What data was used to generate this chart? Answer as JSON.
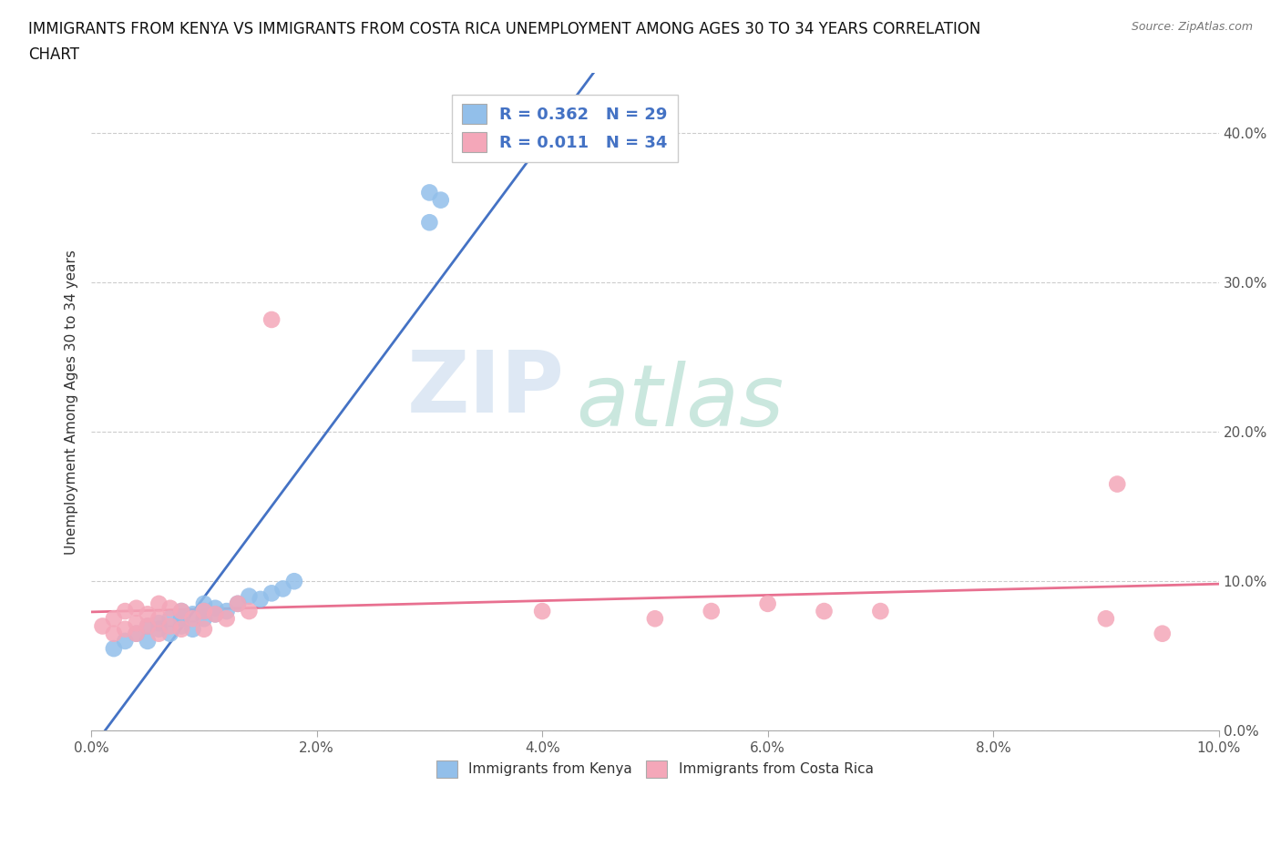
{
  "title_line1": "IMMIGRANTS FROM KENYA VS IMMIGRANTS FROM COSTA RICA UNEMPLOYMENT AMONG AGES 30 TO 34 YEARS CORRELATION",
  "title_line2": "CHART",
  "source_text": "Source: ZipAtlas.com",
  "ylabel": "Unemployment Among Ages 30 to 34 years",
  "xlim": [
    0.0,
    0.1
  ],
  "ylim": [
    0.0,
    0.44
  ],
  "xticks": [
    0.0,
    0.02,
    0.04,
    0.06,
    0.08,
    0.1
  ],
  "yticks": [
    0.0,
    0.1,
    0.2,
    0.3,
    0.4
  ],
  "kenya_color": "#92BFEA",
  "costa_rica_color": "#F4A7B9",
  "kenya_line_color": "#4472C4",
  "costa_rica_line_color": "#E87090",
  "watermark_zip": "ZIP",
  "watermark_atlas": "atlas",
  "legend_r_kenya": "R = 0.362",
  "legend_n_kenya": "N = 29",
  "legend_r_cr": "R = 0.011",
  "legend_n_cr": "N = 34",
  "kenya_x": [
    0.002,
    0.003,
    0.004,
    0.005,
    0.005,
    0.006,
    0.006,
    0.007,
    0.007,
    0.008,
    0.008,
    0.008,
    0.009,
    0.009,
    0.01,
    0.01,
    0.01,
    0.011,
    0.011,
    0.012,
    0.013,
    0.014,
    0.015,
    0.016,
    0.017,
    0.018,
    0.03,
    0.03,
    0.031
  ],
  "kenya_y": [
    0.055,
    0.06,
    0.065,
    0.07,
    0.06,
    0.068,
    0.072,
    0.065,
    0.075,
    0.07,
    0.075,
    0.08,
    0.068,
    0.078,
    0.075,
    0.08,
    0.085,
    0.078,
    0.082,
    0.08,
    0.085,
    0.09,
    0.088,
    0.092,
    0.095,
    0.1,
    0.36,
    0.34,
    0.355
  ],
  "costa_rica_x": [
    0.001,
    0.002,
    0.002,
    0.003,
    0.003,
    0.004,
    0.004,
    0.004,
    0.005,
    0.005,
    0.006,
    0.006,
    0.006,
    0.007,
    0.007,
    0.008,
    0.008,
    0.009,
    0.01,
    0.01,
    0.011,
    0.012,
    0.013,
    0.014,
    0.016,
    0.04,
    0.05,
    0.055,
    0.06,
    0.065,
    0.07,
    0.09,
    0.091,
    0.095
  ],
  "costa_rica_y": [
    0.07,
    0.065,
    0.075,
    0.068,
    0.08,
    0.065,
    0.072,
    0.082,
    0.07,
    0.078,
    0.065,
    0.075,
    0.085,
    0.07,
    0.082,
    0.068,
    0.08,
    0.075,
    0.068,
    0.08,
    0.078,
    0.075,
    0.085,
    0.08,
    0.275,
    0.08,
    0.075,
    0.08,
    0.085,
    0.08,
    0.08,
    0.075,
    0.165,
    0.065
  ],
  "background_color": "#FFFFFF",
  "grid_color": "#CCCCCC",
  "title_fontsize": 12,
  "axis_label_fontsize": 11,
  "tick_fontsize": 11,
  "legend_fontsize": 13
}
